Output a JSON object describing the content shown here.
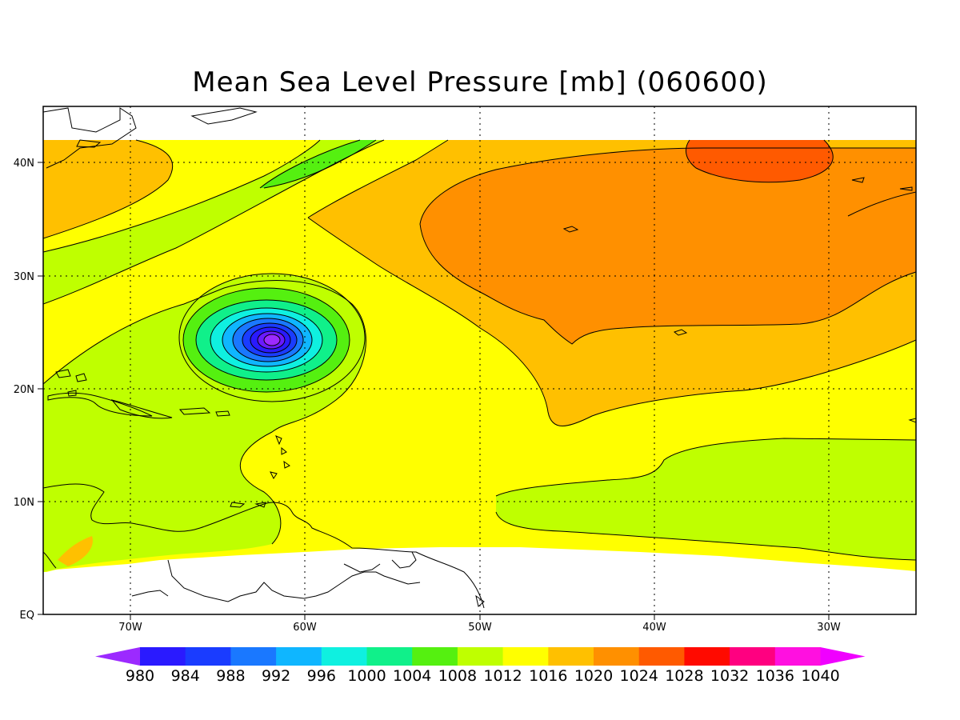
{
  "title": "Mean Sea Level Pressure [mb] (060600)",
  "map": {
    "x_ticks": [
      "70W",
      "60W",
      "50W",
      "40W",
      "30W"
    ],
    "y_ticks": [
      "EQ",
      "10N",
      "20N",
      "30N",
      "40N"
    ],
    "grid": "dotted"
  },
  "colorbar": {
    "levels": [
      "980",
      "984",
      "988",
      "992",
      "996",
      "1000",
      "1004",
      "1008",
      "1012",
      "1016",
      "1020",
      "1024",
      "1028",
      "1032",
      "1036",
      "1040"
    ],
    "colors": [
      "#9c2aff",
      "#2a1aff",
      "#1a3cff",
      "#1a78ff",
      "#0fb6ff",
      "#0ff0e0",
      "#10f08a",
      "#55f010",
      "#bfff00",
      "#ffff00",
      "#ffc000",
      "#ff9000",
      "#ff5a00",
      "#ff0a00",
      "#ff0080",
      "#ff10e0",
      "#f000ff"
    ]
  },
  "chart_data": {
    "type": "heatmap",
    "title": "Mean Sea Level Pressure [mb] (060600)",
    "xlabel": "",
    "ylabel": "",
    "lon_range": [
      -75,
      -25
    ],
    "lat_range": [
      0,
      45
    ],
    "contour_levels_mb": [
      980,
      984,
      988,
      992,
      996,
      1000,
      1004,
      1008,
      1012,
      1016,
      1020,
      1024,
      1028,
      1032,
      1036,
      1040
    ],
    "features": [
      {
        "kind": "low",
        "lon": -62,
        "lat": 24,
        "min_mb": 980
      },
      {
        "kind": "high",
        "lon": -35,
        "lat": 41,
        "max_mb": 1028
      }
    ]
  }
}
